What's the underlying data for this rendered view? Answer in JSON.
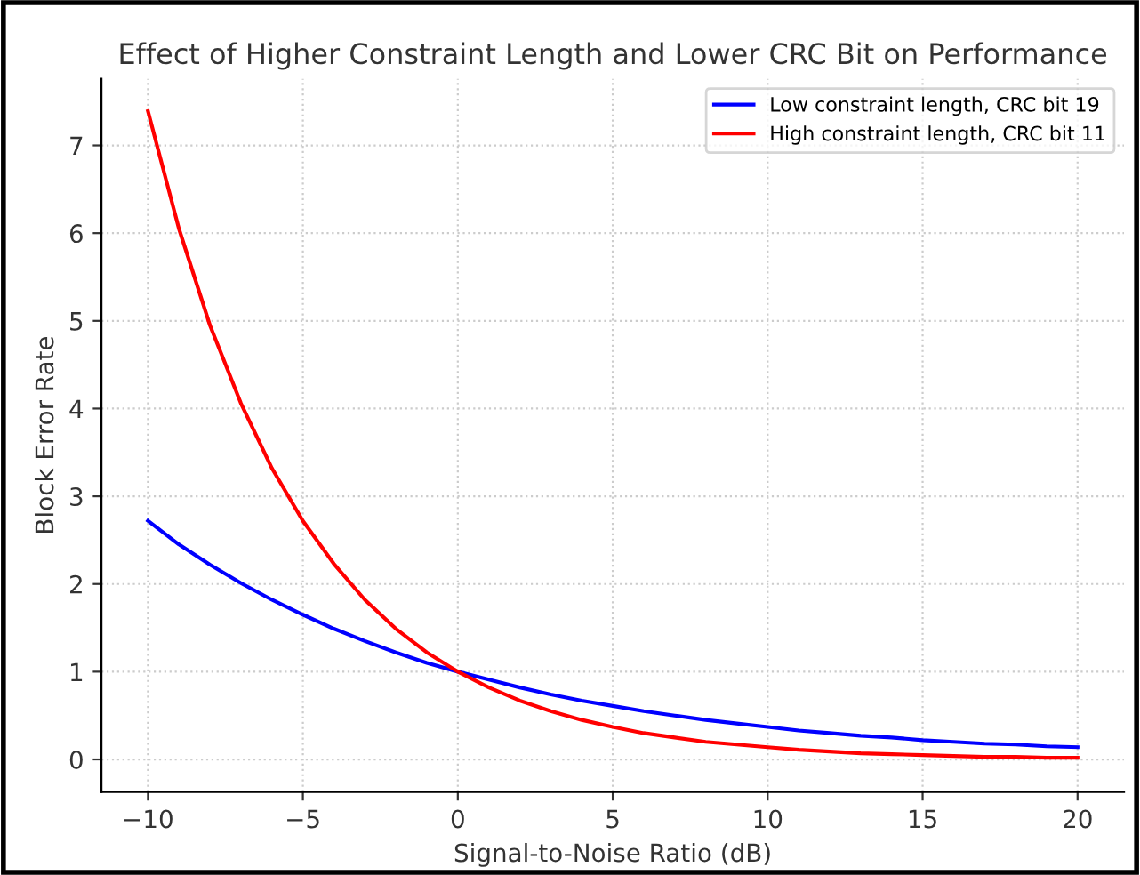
{
  "chart_data": {
    "type": "line",
    "title": "Effect of Higher Constraint Length and Lower CRC Bit on Performance",
    "xlabel": "Signal-to-Noise Ratio (dB)",
    "ylabel": "Block Error Rate",
    "x": [
      -10,
      -9,
      -8,
      -7,
      -6,
      -5,
      -4,
      -3,
      -2,
      -1,
      0,
      1,
      2,
      3,
      4,
      5,
      6,
      7,
      8,
      9,
      10,
      11,
      12,
      13,
      14,
      15,
      16,
      17,
      18,
      19,
      20
    ],
    "series": [
      {
        "name": "Low constraint length, CRC bit 19",
        "color": "#0000ff",
        "values": [
          2.72,
          2.45,
          2.22,
          2.01,
          1.82,
          1.65,
          1.49,
          1.35,
          1.22,
          1.1,
          1.0,
          0.91,
          0.82,
          0.74,
          0.67,
          0.61,
          0.55,
          0.5,
          0.45,
          0.41,
          0.37,
          0.33,
          0.3,
          0.27,
          0.25,
          0.22,
          0.2,
          0.18,
          0.17,
          0.15,
          0.14
        ]
      },
      {
        "name": "High constraint length, CRC bit 11",
        "color": "#ff0000",
        "values": [
          7.39,
          6.05,
          4.95,
          4.06,
          3.32,
          2.72,
          2.23,
          1.82,
          1.49,
          1.22,
          1.0,
          0.82,
          0.67,
          0.55,
          0.45,
          0.37,
          0.3,
          0.25,
          0.2,
          0.17,
          0.14,
          0.11,
          0.09,
          0.07,
          0.06,
          0.05,
          0.04,
          0.03,
          0.03,
          0.02,
          0.02
        ]
      }
    ],
    "xlim": [
      -11.5,
      21.5
    ],
    "ylim": [
      -0.37,
      7.76
    ],
    "xticks": [
      {
        "value": -10,
        "label": "−10"
      },
      {
        "value": -5,
        "label": "−5"
      },
      0,
      5,
      10,
      15,
      20
    ],
    "yticks": [
      0,
      1,
      2,
      3,
      4,
      5,
      6,
      7
    ],
    "grid": true,
    "legend": "top right",
    "line_style": "solid",
    "marker": "none"
  }
}
